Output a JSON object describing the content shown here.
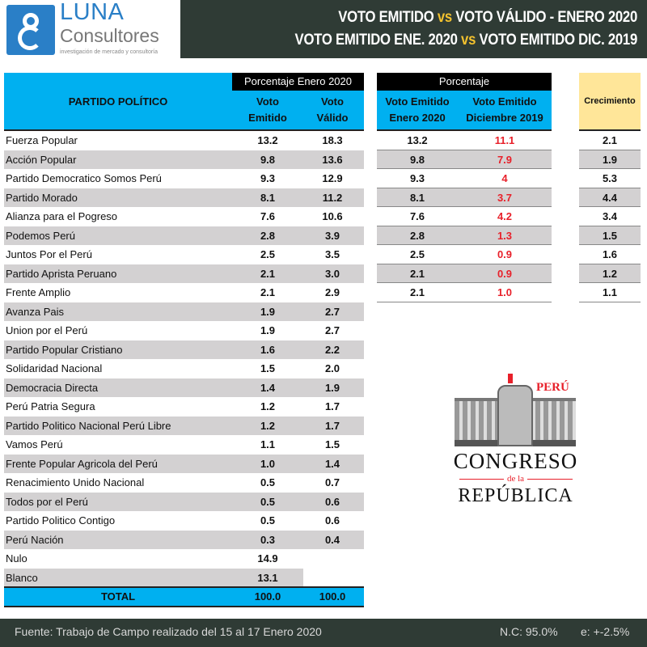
{
  "header": {
    "logo_name": "LUNA",
    "logo_sub": "Consultores",
    "logo_tagline": "investigación de mercado y consultoría",
    "title1_a": "VOTO EMITIDO ",
    "title1_vs": "vs",
    "title1_b": " VOTO VÁLIDO - ENERO 2020",
    "title2_a": "VOTO EMITIDO ENE. 2020 ",
    "title2_vs": "vs",
    "title2_b": " VOTO EMITIDO DIC. 2019"
  },
  "table1": {
    "col_party": "PARTIDO POLÍTICO",
    "group": "Porcentaje Enero 2020",
    "col_emit": "Voto Emitido",
    "col_valid": "Voto Válido",
    "rows": [
      {
        "party": "Fuerza Popular",
        "emit": "13.2",
        "valid": "18.3"
      },
      {
        "party": "Acción Popular",
        "emit": "9.8",
        "valid": "13.6"
      },
      {
        "party": "Partido Democratico Somos Perú",
        "emit": "9.3",
        "valid": "12.9"
      },
      {
        "party": "Partido Morado",
        "emit": "8.1",
        "valid": "11.2"
      },
      {
        "party": "Alianza para el Pogreso",
        "emit": "7.6",
        "valid": "10.6"
      },
      {
        "party": "Podemos Perú",
        "emit": "2.8",
        "valid": "3.9"
      },
      {
        "party": "Juntos Por el Perú",
        "emit": "2.5",
        "valid": "3.5"
      },
      {
        "party": "Partido Aprista Peruano",
        "emit": "2.1",
        "valid": "3.0"
      },
      {
        "party": "Frente Amplio",
        "emit": "2.1",
        "valid": "2.9"
      },
      {
        "party": "Avanza Pais",
        "emit": "1.9",
        "valid": "2.7"
      },
      {
        "party": "Union por el Perú",
        "emit": "1.9",
        "valid": "2.7"
      },
      {
        "party": "Partido Popular Cristiano",
        "emit": "1.6",
        "valid": "2.2"
      },
      {
        "party": "Solidaridad Nacional",
        "emit": "1.5",
        "valid": "2.0"
      },
      {
        "party": "Democracia Directa",
        "emit": "1.4",
        "valid": "1.9"
      },
      {
        "party": "Perú Patria Segura",
        "emit": "1.2",
        "valid": "1.7"
      },
      {
        "party": "Partido Politico Nacional Perú Libre",
        "emit": "1.2",
        "valid": "1.7"
      },
      {
        "party": "Vamos Perú",
        "emit": "1.1",
        "valid": "1.5"
      },
      {
        "party": "Frente Popular Agricola del Perú",
        "emit": "1.0",
        "valid": "1.4"
      },
      {
        "party": "Renacimiento Unido Nacional",
        "emit": "0.5",
        "valid": "0.7"
      },
      {
        "party": "Todos por el Perú",
        "emit": "0.5",
        "valid": "0.6"
      },
      {
        "party": "Partido Politico Contigo",
        "emit": "0.5",
        "valid": "0.6"
      },
      {
        "party": "Perú Nación",
        "emit": "0.3",
        "valid": "0.4"
      },
      {
        "party": "Nulo",
        "emit": "14.9",
        "valid": ""
      },
      {
        "party": "Blanco",
        "emit": "13.1",
        "valid": ""
      }
    ],
    "total": {
      "label": "TOTAL",
      "emit": "100.0",
      "valid": "100.0"
    }
  },
  "table2": {
    "group": "Porcentaje",
    "col_a": "Voto Emitido Enero 2020",
    "col_b": "Voto Emitido Diciembre 2019",
    "rows": [
      {
        "a": "13.2",
        "b": "11.1"
      },
      {
        "a": "9.8",
        "b": "7.9"
      },
      {
        "a": "9.3",
        "b": "4"
      },
      {
        "a": "8.1",
        "b": "3.7"
      },
      {
        "a": "7.6",
        "b": "4.2"
      },
      {
        "a": "2.8",
        "b": "1.3"
      },
      {
        "a": "2.5",
        "b": "0.9"
      },
      {
        "a": "2.1",
        "b": "0.9"
      },
      {
        "a": "2.1",
        "b": "1.0"
      }
    ]
  },
  "table3": {
    "header": "Crecimiento",
    "values": [
      "2.1",
      "1.9",
      "5.3",
      "4.4",
      "3.4",
      "1.5",
      "1.6",
      "1.2",
      "1.1"
    ]
  },
  "emblem": {
    "country": "PERÚ",
    "line1": "CONGRESO",
    "line2": "de la",
    "line3": "REPÚBLICA"
  },
  "footer": {
    "source": "Fuente: Trabajo de Campo realizado del 15 al 17 Enero 2020",
    "nc": "N.C: 95.0%",
    "error": "e: +-2.5%"
  },
  "colors": {
    "cyan": "#00b0f0",
    "dark": "#2f3b35",
    "accent_vs": "#f2c12e",
    "red": "#e8202a",
    "row_gray": "#d3d1d2",
    "growth_bg": "#ffe699"
  }
}
